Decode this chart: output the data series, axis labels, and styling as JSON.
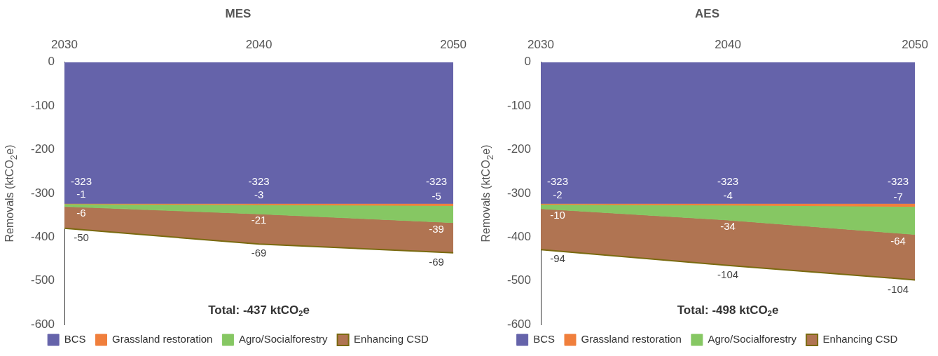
{
  "chart_data": [
    {
      "type": "area",
      "title": "MES",
      "stacked": true,
      "categories": [
        "2030",
        "2040",
        "2050"
      ],
      "ylabel": "Removals (ktCO$_{2}$e)",
      "ylim": [
        -600,
        0
      ],
      "yticks": [
        -600,
        -500,
        -400,
        -300,
        -200,
        -100,
        0
      ],
      "grid": false,
      "legend": "bottom",
      "data_labels": true,
      "annotations": [
        "Total: -437 ktCO$_{2}$e"
      ],
      "series": [
        {
          "name": "BCS",
          "color": "#6563aa",
          "values": [
            -323,
            -323,
            -323
          ]
        },
        {
          "name": "Grassland restoration",
          "color": "#f07f3c",
          "values": [
            -1,
            -3,
            -5
          ]
        },
        {
          "name": "Agro/Socialforestry",
          "color": "#86c763",
          "values": [
            -6,
            -21,
            -39
          ]
        },
        {
          "name": "Enhancing CSD",
          "color": "#b07452",
          "values": [
            -50,
            -69,
            -69
          ]
        }
      ]
    },
    {
      "type": "area",
      "title": "AES",
      "stacked": true,
      "categories": [
        "2030",
        "2040",
        "2050"
      ],
      "ylabel": "Removals (ktCO$_{2}$e)",
      "ylim": [
        -600,
        0
      ],
      "yticks": [
        -600,
        -500,
        -400,
        -300,
        -200,
        -100,
        0
      ],
      "grid": false,
      "legend": "bottom",
      "data_labels": true,
      "annotations": [
        "Total: -498 ktCO$_{2}$e"
      ],
      "series": [
        {
          "name": "BCS",
          "color": "#6563aa",
          "values": [
            -323,
            -323,
            -323
          ]
        },
        {
          "name": "Grassland restoration",
          "color": "#f07f3c",
          "values": [
            -2,
            -4,
            -7
          ]
        },
        {
          "name": "Agro/Socialforestry",
          "color": "#86c763",
          "values": [
            -10,
            -34,
            -64
          ]
        },
        {
          "name": "Enhancing CSD",
          "color": "#b07452",
          "values": [
            -94,
            -104,
            -104
          ]
        }
      ]
    }
  ]
}
